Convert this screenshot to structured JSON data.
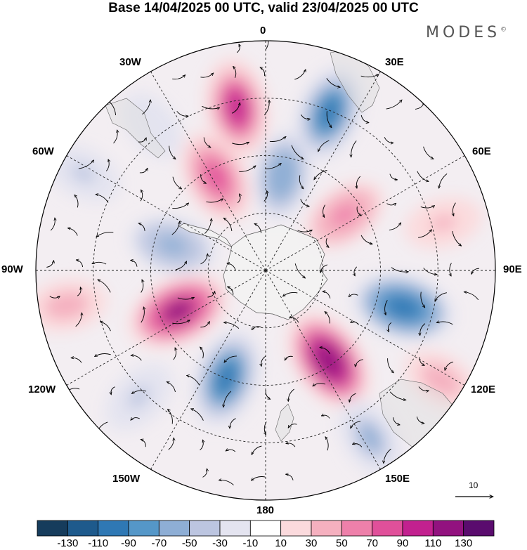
{
  "title": "Base 14/04/2025 00 UTC, valid 23/04/2025 00 UTC",
  "brand": {
    "name": "MODES",
    "mark": "©"
  },
  "longitude_labels": {
    "lon_0": "0",
    "lon_30e": "30E",
    "lon_60e": "60E",
    "lon_90e": "90E",
    "lon_120e": "120E",
    "lon_150e": "150E",
    "lon_180": "180",
    "lon_150w": "150W",
    "lon_120w": "120W",
    "lon_90w": "90W",
    "lon_60w": "60W",
    "lon_30w": "30W"
  },
  "vector_scale": {
    "value": "10"
  },
  "colorbar": {
    "colors": [
      "#163c5c",
      "#1e5a8c",
      "#2f78b4",
      "#5597c8",
      "#8eaed5",
      "#bcc5e0",
      "#e4e4f0",
      "#ffffff",
      "#fbdadd",
      "#f5b0bf",
      "#ee80aa",
      "#e0509a",
      "#c2218f",
      "#92127f",
      "#5a0c6e"
    ],
    "ticks": [
      "-130",
      "-110",
      "-90",
      "-70",
      "-50",
      "-30",
      "-10",
      "10",
      "30",
      "50",
      "70",
      "90",
      "110",
      "130"
    ]
  },
  "anomalies": [
    {
      "lon": -10,
      "r": 0.72,
      "value": 95
    },
    {
      "lon": 22,
      "r": 0.74,
      "value": -95
    },
    {
      "lon": -28,
      "r": 0.46,
      "value": 85
    },
    {
      "lon": 10,
      "r": 0.42,
      "value": -70
    },
    {
      "lon": 55,
      "r": 0.42,
      "value": 60
    },
    {
      "lon": 75,
      "r": 0.8,
      "value": 35
    },
    {
      "lon": 105,
      "r": 0.62,
      "value": -110
    },
    {
      "lon": 122,
      "r": 0.9,
      "value": 40
    },
    {
      "lon": 145,
      "r": 0.48,
      "value": 120
    },
    {
      "lon": 148,
      "r": 0.86,
      "value": -55
    },
    {
      "lon": -160,
      "r": 0.5,
      "value": -100
    },
    {
      "lon": -115,
      "r": 0.42,
      "value": 110
    },
    {
      "lon": -100,
      "r": 0.88,
      "value": 45
    },
    {
      "lon": -135,
      "r": 0.78,
      "value": -40
    },
    {
      "lon": -75,
      "r": 0.42,
      "value": -65
    },
    {
      "lon": -62,
      "r": 0.9,
      "value": -35
    },
    {
      "lon": -38,
      "r": 0.8,
      "value": -25
    }
  ]
}
